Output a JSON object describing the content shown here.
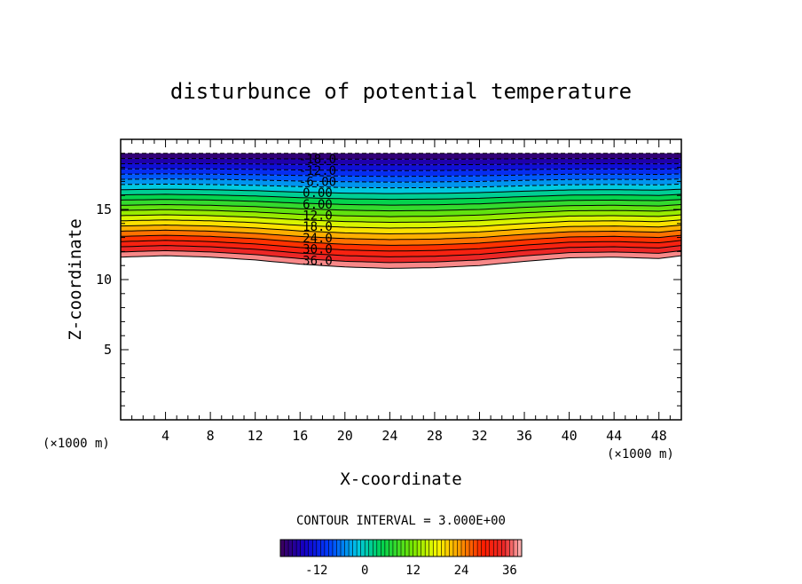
{
  "chart_data": {
    "type": "contour",
    "title": "disturbunce of potential temperature",
    "xlabel": "X-coordinate",
    "ylabel": "Z-coordinate",
    "x_unit": "(×1000 m)",
    "z_unit": "(×1000 m)",
    "xlim": [
      0,
      50
    ],
    "ylim": [
      0,
      20
    ],
    "x_ticks": [
      4,
      8,
      12,
      16,
      20,
      24,
      28,
      32,
      36,
      40,
      44,
      48
    ],
    "y_ticks": [
      5,
      10,
      15
    ],
    "contour_interval_text": "CONTOUR INTERVAL = 3.000E+00",
    "contour_interval": 3,
    "level_range": [
      -21,
      39
    ],
    "contour_labels": [
      "-18.0",
      "-12.0",
      "-6.00",
      "0.00",
      "6.00",
      "12.0",
      "18.0",
      "24.0",
      "30.0",
      "36.0"
    ],
    "label_levels": [
      -18,
      -12,
      -6,
      0,
      6,
      12,
      18,
      24,
      30,
      36
    ],
    "negative_contours_dashed": true,
    "colorbar_ticks": [
      -12,
      0,
      12,
      24,
      36
    ],
    "colorbar_range": [
      -21,
      39
    ],
    "colormap": "rainbow (purple-blue-cyan-green-yellow-orange-red-pink)",
    "field_top_z": 19,
    "field_bottom_profile": {
      "x": [
        0,
        4,
        8,
        12,
        16,
        20,
        24,
        28,
        32,
        36,
        40,
        44,
        48,
        50
      ],
      "z": [
        11.6,
        11.7,
        11.6,
        11.4,
        11.1,
        10.9,
        10.8,
        10.85,
        11.0,
        11.3,
        11.55,
        11.6,
        11.5,
        11.7
      ]
    }
  }
}
